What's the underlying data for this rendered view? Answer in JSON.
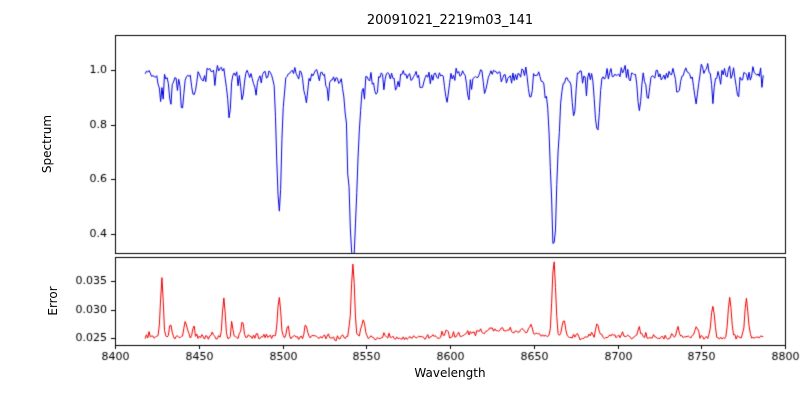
{
  "figure": {
    "background": "#ffffff",
    "axis_color": "#000000"
  },
  "chart_data": [
    {
      "type": "line",
      "name": "spectrum-panel",
      "title": "20091021_2219m03_141",
      "ylabel": "Spectrum",
      "line_color": "#0000dd",
      "xlim": [
        8400,
        8800
      ],
      "ylim": [
        0.33,
        1.13
      ],
      "x_range": [
        8418,
        8787
      ],
      "n_points": 480,
      "y_ticks": [
        0.4,
        0.6,
        0.8,
        1.0
      ],
      "y_tick_labels": [
        "0.4",
        "0.6",
        "0.8",
        "1.0"
      ],
      "continuum": 0.99,
      "noise_sigma": 0.012,
      "noise_seed": 20091021,
      "absorption_lines": [
        {
          "center": 8427,
          "depth": 0.09,
          "sigma": 0.9
        },
        {
          "center": 8433,
          "depth": 0.11,
          "sigma": 1.0
        },
        {
          "center": 8440,
          "depth": 0.13,
          "sigma": 1.0
        },
        {
          "center": 8447,
          "depth": 0.09,
          "sigma": 0.9
        },
        {
          "center": 8468,
          "depth": 0.14,
          "sigma": 1.0
        },
        {
          "center": 8476,
          "depth": 0.09,
          "sigma": 0.9
        },
        {
          "center": 8484,
          "depth": 0.08,
          "sigma": 0.9
        },
        {
          "center": 8498.0,
          "depth": 0.5,
          "sigma": 1.4
        },
        {
          "center": 8514,
          "depth": 0.1,
          "sigma": 1.0
        },
        {
          "center": 8527,
          "depth": 0.07,
          "sigma": 0.9
        },
        {
          "center": 8542.1,
          "depth": 0.62,
          "sigma": 2.3
        },
        {
          "center": 8542.1,
          "depth": 0.06,
          "sigma": 7.0
        },
        {
          "center": 8556,
          "depth": 0.07,
          "sigma": 0.9
        },
        {
          "center": 8568,
          "depth": 0.07,
          "sigma": 0.9
        },
        {
          "center": 8583,
          "depth": 0.06,
          "sigma": 0.9
        },
        {
          "center": 8598,
          "depth": 0.1,
          "sigma": 1.0
        },
        {
          "center": 8611,
          "depth": 0.07,
          "sigma": 0.9
        },
        {
          "center": 8621,
          "depth": 0.08,
          "sigma": 0.9
        },
        {
          "center": 8648,
          "depth": 0.1,
          "sigma": 1.0
        },
        {
          "center": 8662.1,
          "depth": 0.56,
          "sigma": 1.9
        },
        {
          "center": 8662.1,
          "depth": 0.05,
          "sigma": 6.0
        },
        {
          "center": 8674,
          "depth": 0.14,
          "sigma": 1.0
        },
        {
          "center": 8688,
          "depth": 0.24,
          "sigma": 1.2
        },
        {
          "center": 8713,
          "depth": 0.12,
          "sigma": 1.0
        },
        {
          "center": 8718,
          "depth": 0.08,
          "sigma": 0.9
        },
        {
          "center": 8736,
          "depth": 0.08,
          "sigma": 0.9
        },
        {
          "center": 8747,
          "depth": 0.11,
          "sigma": 1.0
        },
        {
          "center": 8757,
          "depth": 0.1,
          "sigma": 1.0
        },
        {
          "center": 8772,
          "depth": 0.07,
          "sigma": 0.9
        }
      ]
    },
    {
      "type": "line",
      "name": "error-panel",
      "ylabel": "Error",
      "xlabel": "Wavelength",
      "line_color": "#ee0000",
      "xlim": [
        8400,
        8800
      ],
      "ylim": [
        0.0238,
        0.0392
      ],
      "x_range": [
        8418,
        8787
      ],
      "n_points": 480,
      "x_ticks": [
        8400,
        8450,
        8500,
        8550,
        8600,
        8650,
        8700,
        8750,
        8800
      ],
      "x_tick_labels": [
        "8400",
        "8450",
        "8500",
        "8550",
        "8600",
        "8650",
        "8700",
        "8750",
        "8800"
      ],
      "y_ticks": [
        0.025,
        0.03,
        0.035
      ],
      "y_tick_labels": [
        "0.025",
        "0.030",
        "0.035"
      ],
      "baseline": 0.0249,
      "noise_sigma": 0.00028,
      "noise_seed": 2219,
      "peaks": [
        {
          "center": 8428,
          "height": 0.0105,
          "sigma": 0.8
        },
        {
          "center": 8433,
          "height": 0.002,
          "sigma": 0.8
        },
        {
          "center": 8442,
          "height": 0.0025,
          "sigma": 0.8
        },
        {
          "center": 8447,
          "height": 0.002,
          "sigma": 0.7
        },
        {
          "center": 8465,
          "height": 0.007,
          "sigma": 0.8
        },
        {
          "center": 8470,
          "height": 0.002,
          "sigma": 0.6
        },
        {
          "center": 8476,
          "height": 0.0025,
          "sigma": 0.7
        },
        {
          "center": 8498,
          "height": 0.007,
          "sigma": 0.9
        },
        {
          "center": 8503,
          "height": 0.002,
          "sigma": 0.6
        },
        {
          "center": 8514,
          "height": 0.0025,
          "sigma": 0.8
        },
        {
          "center": 8542,
          "height": 0.0125,
          "sigma": 1.0
        },
        {
          "center": 8548,
          "height": 0.003,
          "sigma": 1.0
        },
        {
          "center": 8598,
          "height": 0.0012,
          "sigma": 0.8
        },
        {
          "center": 8630,
          "height": 0.0013,
          "sigma": 18.0
        },
        {
          "center": 8648,
          "height": 0.0015,
          "sigma": 1.0
        },
        {
          "center": 8662,
          "height": 0.0135,
          "sigma": 1.0
        },
        {
          "center": 8668,
          "height": 0.003,
          "sigma": 0.8
        },
        {
          "center": 8688,
          "height": 0.0028,
          "sigma": 0.9
        },
        {
          "center": 8713,
          "height": 0.0018,
          "sigma": 0.8
        },
        {
          "center": 8736,
          "height": 0.0015,
          "sigma": 0.8
        },
        {
          "center": 8747,
          "height": 0.002,
          "sigma": 0.8
        },
        {
          "center": 8757,
          "height": 0.006,
          "sigma": 1.0
        },
        {
          "center": 8767,
          "height": 0.007,
          "sigma": 1.0
        },
        {
          "center": 8777,
          "height": 0.0065,
          "sigma": 1.0
        }
      ]
    }
  ]
}
